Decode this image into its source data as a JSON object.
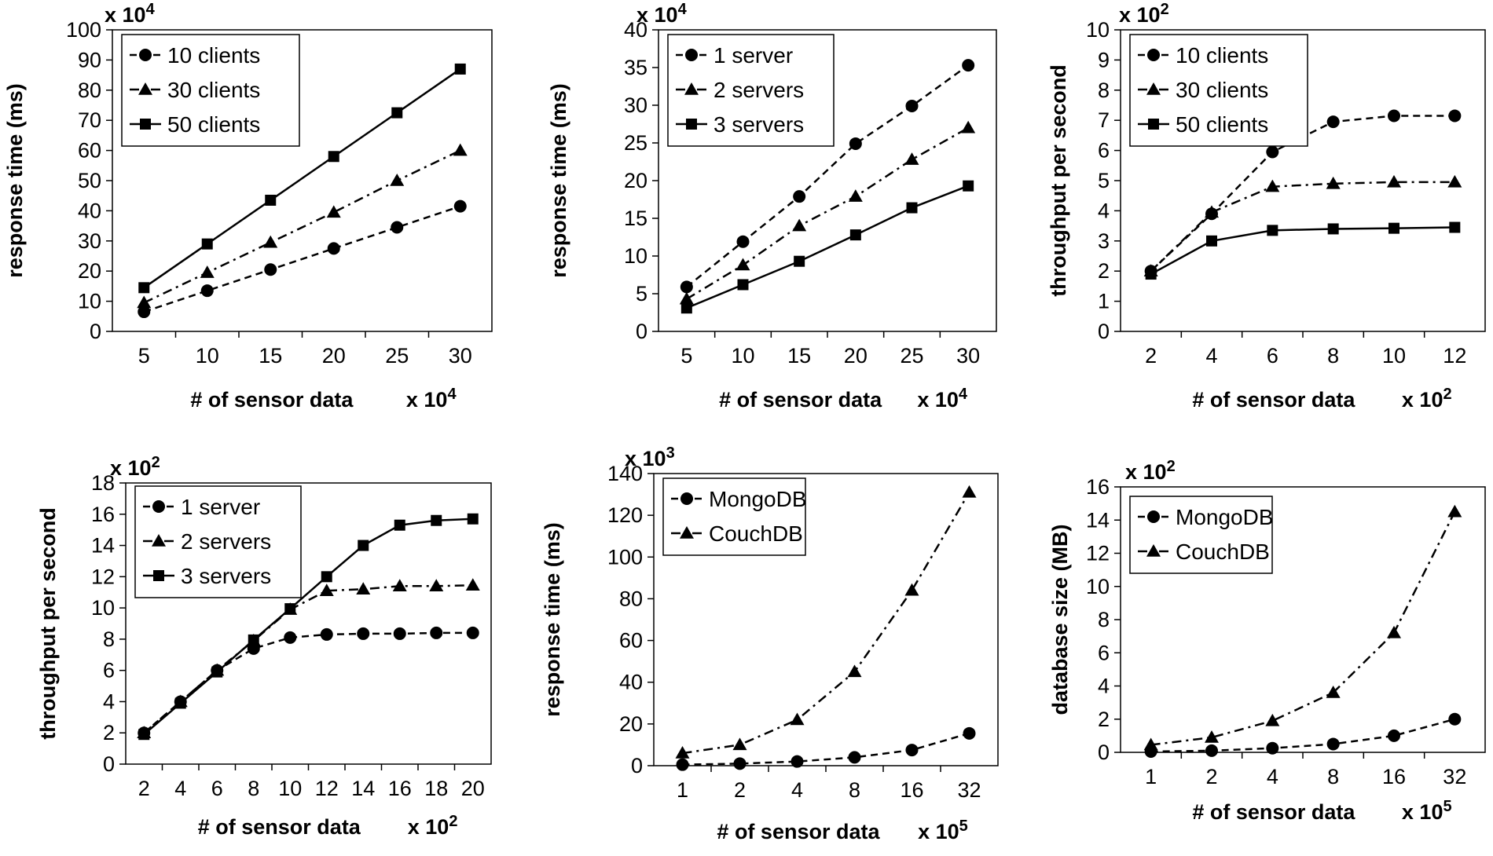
{
  "chart_data": [
    {
      "type": "line",
      "ylabel": "response time (ms)",
      "xlabel": "# of sensor data",
      "ymult": {
        "base": "x 10",
        "exp": "4"
      },
      "xmult": {
        "base": "x 10",
        "exp": "4"
      },
      "categories": [
        "5",
        "10",
        "15",
        "20",
        "25",
        "30"
      ],
      "ylim": [
        0,
        100
      ],
      "yticks": [
        0,
        10,
        20,
        30,
        40,
        50,
        60,
        70,
        80,
        90,
        100
      ],
      "series": [
        {
          "name": "10 clients",
          "marker": "circle",
          "dash": "dash",
          "values": [
            6.5,
            13.5,
            20.5,
            27.5,
            34.5,
            41.5
          ]
        },
        {
          "name": "30 clients",
          "marker": "triangle",
          "dash": "dashdot",
          "values": [
            9.5,
            19.5,
            29.5,
            39.5,
            50,
            60
          ]
        },
        {
          "name": "50 clients",
          "marker": "square",
          "dash": "solid",
          "values": [
            14.5,
            29,
            43.5,
            58,
            72.5,
            87
          ]
        }
      ]
    },
    {
      "type": "line",
      "ylabel": "response time (ms)",
      "xlabel": "# of sensor data",
      "ymult": {
        "base": "x 10",
        "exp": "4"
      },
      "xmult": {
        "base": "x 10",
        "exp": "4"
      },
      "categories": [
        "5",
        "10",
        "15",
        "20",
        "25",
        "30"
      ],
      "ylim": [
        0,
        40
      ],
      "yticks": [
        0,
        5,
        10,
        15,
        20,
        25,
        30,
        35,
        40
      ],
      "series": [
        {
          "name": "1 server",
          "marker": "circle",
          "dash": "dash",
          "values": [
            5.9,
            11.9,
            17.9,
            24.9,
            29.9,
            35.3
          ]
        },
        {
          "name": "2 servers",
          "marker": "triangle",
          "dash": "dashdot",
          "values": [
            4.3,
            8.8,
            14,
            17.9,
            22.8,
            27
          ]
        },
        {
          "name": "3 servers",
          "marker": "square",
          "dash": "solid",
          "values": [
            3.1,
            6.2,
            9.3,
            12.8,
            16.4,
            19.3
          ]
        }
      ]
    },
    {
      "type": "line",
      "ylabel": "throughput per second",
      "xlabel": "# of sensor data",
      "ymult": {
        "base": "x 10",
        "exp": "2"
      },
      "xmult": {
        "base": "x 10",
        "exp": "2"
      },
      "categories": [
        "2",
        "4",
        "6",
        "8",
        "10",
        "12"
      ],
      "ylim": [
        0,
        10
      ],
      "yticks": [
        0,
        1,
        2,
        3,
        4,
        5,
        6,
        7,
        8,
        9,
        10
      ],
      "series": [
        {
          "name": "10 clients",
          "marker": "circle",
          "dash": "dash",
          "values": [
            2,
            3.9,
            5.95,
            6.95,
            7.15,
            7.15
          ]
        },
        {
          "name": "30 clients",
          "marker": "triangle",
          "dash": "dashdot",
          "values": [
            2,
            3.95,
            4.8,
            4.9,
            4.95,
            4.95
          ]
        },
        {
          "name": "50 clients",
          "marker": "square",
          "dash": "solid",
          "values": [
            1.9,
            3,
            3.35,
            3.4,
            3.42,
            3.45
          ]
        }
      ]
    },
    {
      "type": "line",
      "ylabel": "throughput per second",
      "xlabel": "# of sensor data",
      "ymult": {
        "base": "x 10",
        "exp": "2"
      },
      "xmult": {
        "base": "x 10",
        "exp": "2"
      },
      "categories": [
        "2",
        "4",
        "6",
        "8",
        "10",
        "12",
        "14",
        "16",
        "18",
        "20"
      ],
      "ylim": [
        0,
        18
      ],
      "yticks": [
        0,
        2,
        4,
        6,
        8,
        10,
        12,
        14,
        16,
        18
      ],
      "series": [
        {
          "name": "1 server",
          "marker": "circle",
          "dash": "dash",
          "values": [
            2,
            4,
            6,
            7.4,
            8.1,
            8.3,
            8.35,
            8.35,
            8.4,
            8.4
          ]
        },
        {
          "name": "2 servers",
          "marker": "triangle",
          "dash": "dashdot",
          "values": [
            2,
            4,
            6,
            7.9,
            9.9,
            11.1,
            11.2,
            11.4,
            11.4,
            11.45
          ]
        },
        {
          "name": "3 servers",
          "marker": "square",
          "dash": "solid",
          "values": [
            1.9,
            3.9,
            5.9,
            7.95,
            9.95,
            12,
            14,
            15.3,
            15.6,
            15.7
          ]
        }
      ]
    },
    {
      "type": "line",
      "ylabel": "response time (ms)",
      "xlabel": "# of sensor data",
      "ymult": {
        "base": "x 10",
        "exp": "3"
      },
      "xmult": {
        "base": "x 10",
        "exp": "5"
      },
      "categories": [
        "1",
        "2",
        "4",
        "8",
        "16",
        "32"
      ],
      "ylim": [
        0,
        140
      ],
      "yticks": [
        0,
        20,
        40,
        60,
        80,
        100,
        120,
        140
      ],
      "series": [
        {
          "name": "MongoDB",
          "marker": "circle",
          "dash": "dash",
          "values": [
            0.5,
            1,
            2,
            4,
            7.5,
            15.5
          ]
        },
        {
          "name": "CouchDB",
          "marker": "triangle",
          "dash": "dashdot",
          "values": [
            6,
            10,
            22,
            45,
            84,
            131
          ]
        }
      ]
    },
    {
      "type": "line",
      "ylabel": "database size (MB)",
      "xlabel": "# of sensor data",
      "ymult": {
        "base": "x 10",
        "exp": "2"
      },
      "xmult": {
        "base": "x 10",
        "exp": "5"
      },
      "categories": [
        "1",
        "2",
        "4",
        "8",
        "16",
        "32"
      ],
      "ylim": [
        0,
        16
      ],
      "yticks": [
        0,
        2,
        4,
        6,
        8,
        10,
        12,
        14,
        16
      ],
      "series": [
        {
          "name": "MongoDB",
          "marker": "circle",
          "dash": "dash",
          "values": [
            0.05,
            0.1,
            0.25,
            0.5,
            1,
            2
          ]
        },
        {
          "name": "CouchDB",
          "marker": "triangle",
          "dash": "dashdot",
          "values": [
            0.45,
            0.9,
            1.9,
            3.6,
            7.2,
            14.5
          ]
        }
      ]
    }
  ]
}
